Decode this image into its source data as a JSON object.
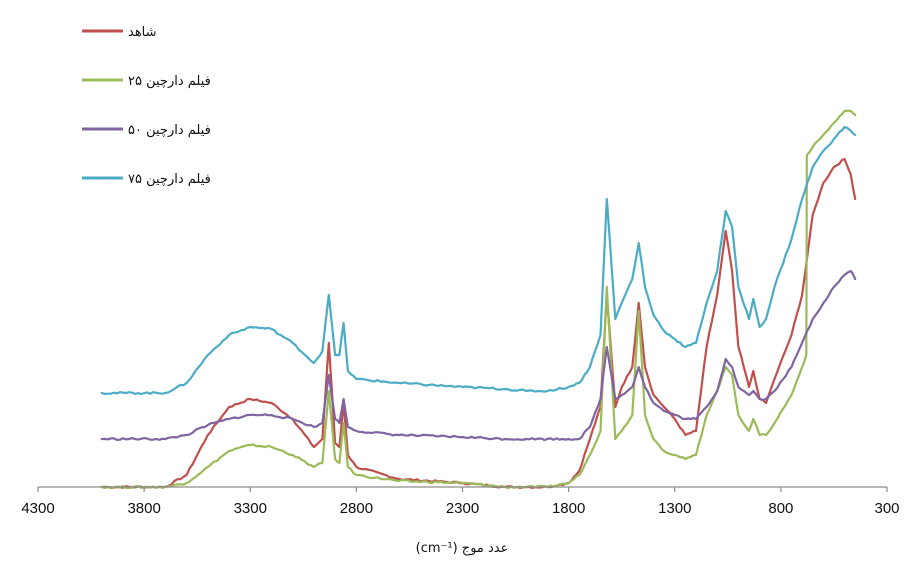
{
  "chart_data": {
    "type": "line",
    "title": "",
    "xlabel": "عدد موج (cm⁻¹)",
    "ylabel": "",
    "x_reversed": true,
    "xlim": [
      4300,
      300
    ],
    "xticks": [
      4300,
      3800,
      3300,
      2800,
      2300,
      1800,
      1300,
      800,
      300
    ],
    "xtick_labels": [
      "4300",
      "3800",
      "3300",
      "2800",
      "2300",
      "1800",
      "1300",
      "800",
      "300"
    ],
    "y_axis_visible": false,
    "ylim": [
      0,
      100
    ],
    "grid": false,
    "legend_position": "top-left",
    "series": [
      {
        "name": "شاهد",
        "color": "#c0504d",
        "points": [
          [
            4000,
            0
          ],
          [
            3700,
            0
          ],
          [
            3600,
            3
          ],
          [
            3500,
            13
          ],
          [
            3400,
            20
          ],
          [
            3300,
            22
          ],
          [
            3200,
            21
          ],
          [
            3100,
            17
          ],
          [
            3000,
            10
          ],
          [
            2960,
            12
          ],
          [
            2930,
            36
          ],
          [
            2900,
            11
          ],
          [
            2880,
            10
          ],
          [
            2860,
            21
          ],
          [
            2840,
            8
          ],
          [
            2800,
            5
          ],
          [
            2600,
            2
          ],
          [
            2300,
            1
          ],
          [
            2100,
            0
          ],
          [
            2000,
            0
          ],
          [
            1900,
            0
          ],
          [
            1800,
            1
          ],
          [
            1750,
            4
          ],
          [
            1700,
            12
          ],
          [
            1650,
            20
          ],
          [
            1620,
            48
          ],
          [
            1580,
            20
          ],
          [
            1550,
            25
          ],
          [
            1500,
            30
          ],
          [
            1470,
            46
          ],
          [
            1440,
            30
          ],
          [
            1400,
            23
          ],
          [
            1350,
            20
          ],
          [
            1300,
            17
          ],
          [
            1250,
            13
          ],
          [
            1200,
            14
          ],
          [
            1150,
            35
          ],
          [
            1100,
            48
          ],
          [
            1060,
            64
          ],
          [
            1030,
            54
          ],
          [
            1000,
            35
          ],
          [
            950,
            25
          ],
          [
            930,
            29
          ],
          [
            900,
            22
          ],
          [
            870,
            21
          ],
          [
            830,
            27
          ],
          [
            750,
            38
          ],
          [
            700,
            48
          ],
          [
            650,
            68
          ],
          [
            600,
            76
          ],
          [
            550,
            80
          ],
          [
            500,
            82
          ],
          [
            470,
            78
          ],
          [
            450,
            72
          ]
        ]
      },
      {
        "name": "فیلم دارچین ۲۵",
        "color": "#9bbb59",
        "points": [
          [
            4000,
            0
          ],
          [
            3700,
            0
          ],
          [
            3600,
            1
          ],
          [
            3500,
            5
          ],
          [
            3400,
            9
          ],
          [
            3300,
            10.5
          ],
          [
            3200,
            10
          ],
          [
            3100,
            8
          ],
          [
            3000,
            5
          ],
          [
            2960,
            6
          ],
          [
            2930,
            24
          ],
          [
            2900,
            7
          ],
          [
            2880,
            6
          ],
          [
            2860,
            16
          ],
          [
            2840,
            5
          ],
          [
            2800,
            3
          ],
          [
            2600,
            1.5
          ],
          [
            2300,
            1
          ],
          [
            2100,
            0
          ],
          [
            2000,
            0
          ],
          [
            1900,
            0
          ],
          [
            1800,
            1
          ],
          [
            1750,
            3
          ],
          [
            1700,
            8
          ],
          [
            1650,
            14
          ],
          [
            1620,
            50
          ],
          [
            1580,
            12
          ],
          [
            1550,
            14
          ],
          [
            1500,
            18
          ],
          [
            1470,
            44
          ],
          [
            1440,
            18
          ],
          [
            1400,
            12
          ],
          [
            1350,
            9
          ],
          [
            1300,
            8
          ],
          [
            1250,
            7
          ],
          [
            1200,
            8
          ],
          [
            1150,
            18
          ],
          [
            1100,
            24
          ],
          [
            1060,
            30
          ],
          [
            1030,
            28
          ],
          [
            1000,
            18
          ],
          [
            950,
            14
          ],
          [
            930,
            17
          ],
          [
            900,
            13
          ],
          [
            870,
            13
          ],
          [
            830,
            16
          ],
          [
            750,
            23
          ],
          [
            700,
            30
          ],
          [
            680,
            33
          ],
          [
            678,
            83
          ],
          [
            650,
            85
          ],
          [
            600,
            88
          ],
          [
            550,
            91
          ],
          [
            500,
            94
          ],
          [
            470,
            94
          ],
          [
            450,
            93
          ]
        ]
      },
      {
        "name": "فیلم دارچین ۵۰",
        "color": "#8064a2",
        "points": [
          [
            4000,
            12
          ],
          [
            3700,
            12
          ],
          [
            3600,
            13
          ],
          [
            3500,
            15.5
          ],
          [
            3400,
            17
          ],
          [
            3300,
            18
          ],
          [
            3200,
            18
          ],
          [
            3100,
            17
          ],
          [
            3000,
            15
          ],
          [
            2960,
            16
          ],
          [
            2930,
            28
          ],
          [
            2900,
            17
          ],
          [
            2880,
            16
          ],
          [
            2860,
            22
          ],
          [
            2840,
            15
          ],
          [
            2800,
            14
          ],
          [
            2600,
            13
          ],
          [
            2300,
            12.5
          ],
          [
            2100,
            12
          ],
          [
            2000,
            12
          ],
          [
            1900,
            12
          ],
          [
            1800,
            12
          ],
          [
            1750,
            12
          ],
          [
            1700,
            15
          ],
          [
            1650,
            22
          ],
          [
            1620,
            35
          ],
          [
            1580,
            22
          ],
          [
            1550,
            23
          ],
          [
            1500,
            25
          ],
          [
            1470,
            30
          ],
          [
            1440,
            25
          ],
          [
            1400,
            21
          ],
          [
            1350,
            19
          ],
          [
            1300,
            18
          ],
          [
            1250,
            17
          ],
          [
            1200,
            17
          ],
          [
            1150,
            20
          ],
          [
            1100,
            24
          ],
          [
            1060,
            32
          ],
          [
            1030,
            30
          ],
          [
            1000,
            25
          ],
          [
            950,
            23
          ],
          [
            930,
            24
          ],
          [
            900,
            22
          ],
          [
            870,
            22
          ],
          [
            830,
            24
          ],
          [
            750,
            30
          ],
          [
            700,
            36
          ],
          [
            650,
            42
          ],
          [
            600,
            46
          ],
          [
            550,
            50
          ],
          [
            500,
            53
          ],
          [
            470,
            54
          ],
          [
            450,
            52
          ]
        ]
      },
      {
        "name": "فیلم دارچین ۷۵",
        "color": "#4bacc6",
        "points": [
          [
            4000,
            23.5
          ],
          [
            3700,
            23.5
          ],
          [
            3600,
            26
          ],
          [
            3500,
            33
          ],
          [
            3400,
            38
          ],
          [
            3300,
            40
          ],
          [
            3200,
            39.5
          ],
          [
            3100,
            36
          ],
          [
            3000,
            31
          ],
          [
            2960,
            34
          ],
          [
            2930,
            48
          ],
          [
            2900,
            33
          ],
          [
            2880,
            33
          ],
          [
            2860,
            41
          ],
          [
            2840,
            29
          ],
          [
            2800,
            27
          ],
          [
            2600,
            26
          ],
          [
            2300,
            25
          ],
          [
            2100,
            24.5
          ],
          [
            2000,
            24
          ],
          [
            1900,
            24
          ],
          [
            1800,
            25
          ],
          [
            1750,
            26
          ],
          [
            1700,
            30
          ],
          [
            1650,
            38
          ],
          [
            1620,
            72
          ],
          [
            1580,
            42
          ],
          [
            1550,
            46
          ],
          [
            1500,
            52
          ],
          [
            1470,
            61
          ],
          [
            1440,
            50
          ],
          [
            1400,
            43
          ],
          [
            1350,
            39
          ],
          [
            1300,
            37
          ],
          [
            1250,
            35
          ],
          [
            1200,
            36
          ],
          [
            1150,
            46
          ],
          [
            1100,
            54
          ],
          [
            1060,
            69
          ],
          [
            1030,
            65
          ],
          [
            1000,
            50
          ],
          [
            950,
            42
          ],
          [
            930,
            47
          ],
          [
            900,
            40
          ],
          [
            870,
            42
          ],
          [
            830,
            50
          ],
          [
            750,
            62
          ],
          [
            700,
            72
          ],
          [
            650,
            80
          ],
          [
            600,
            84
          ],
          [
            550,
            87
          ],
          [
            500,
            90
          ],
          [
            470,
            89
          ],
          [
            450,
            88
          ]
        ]
      }
    ]
  }
}
